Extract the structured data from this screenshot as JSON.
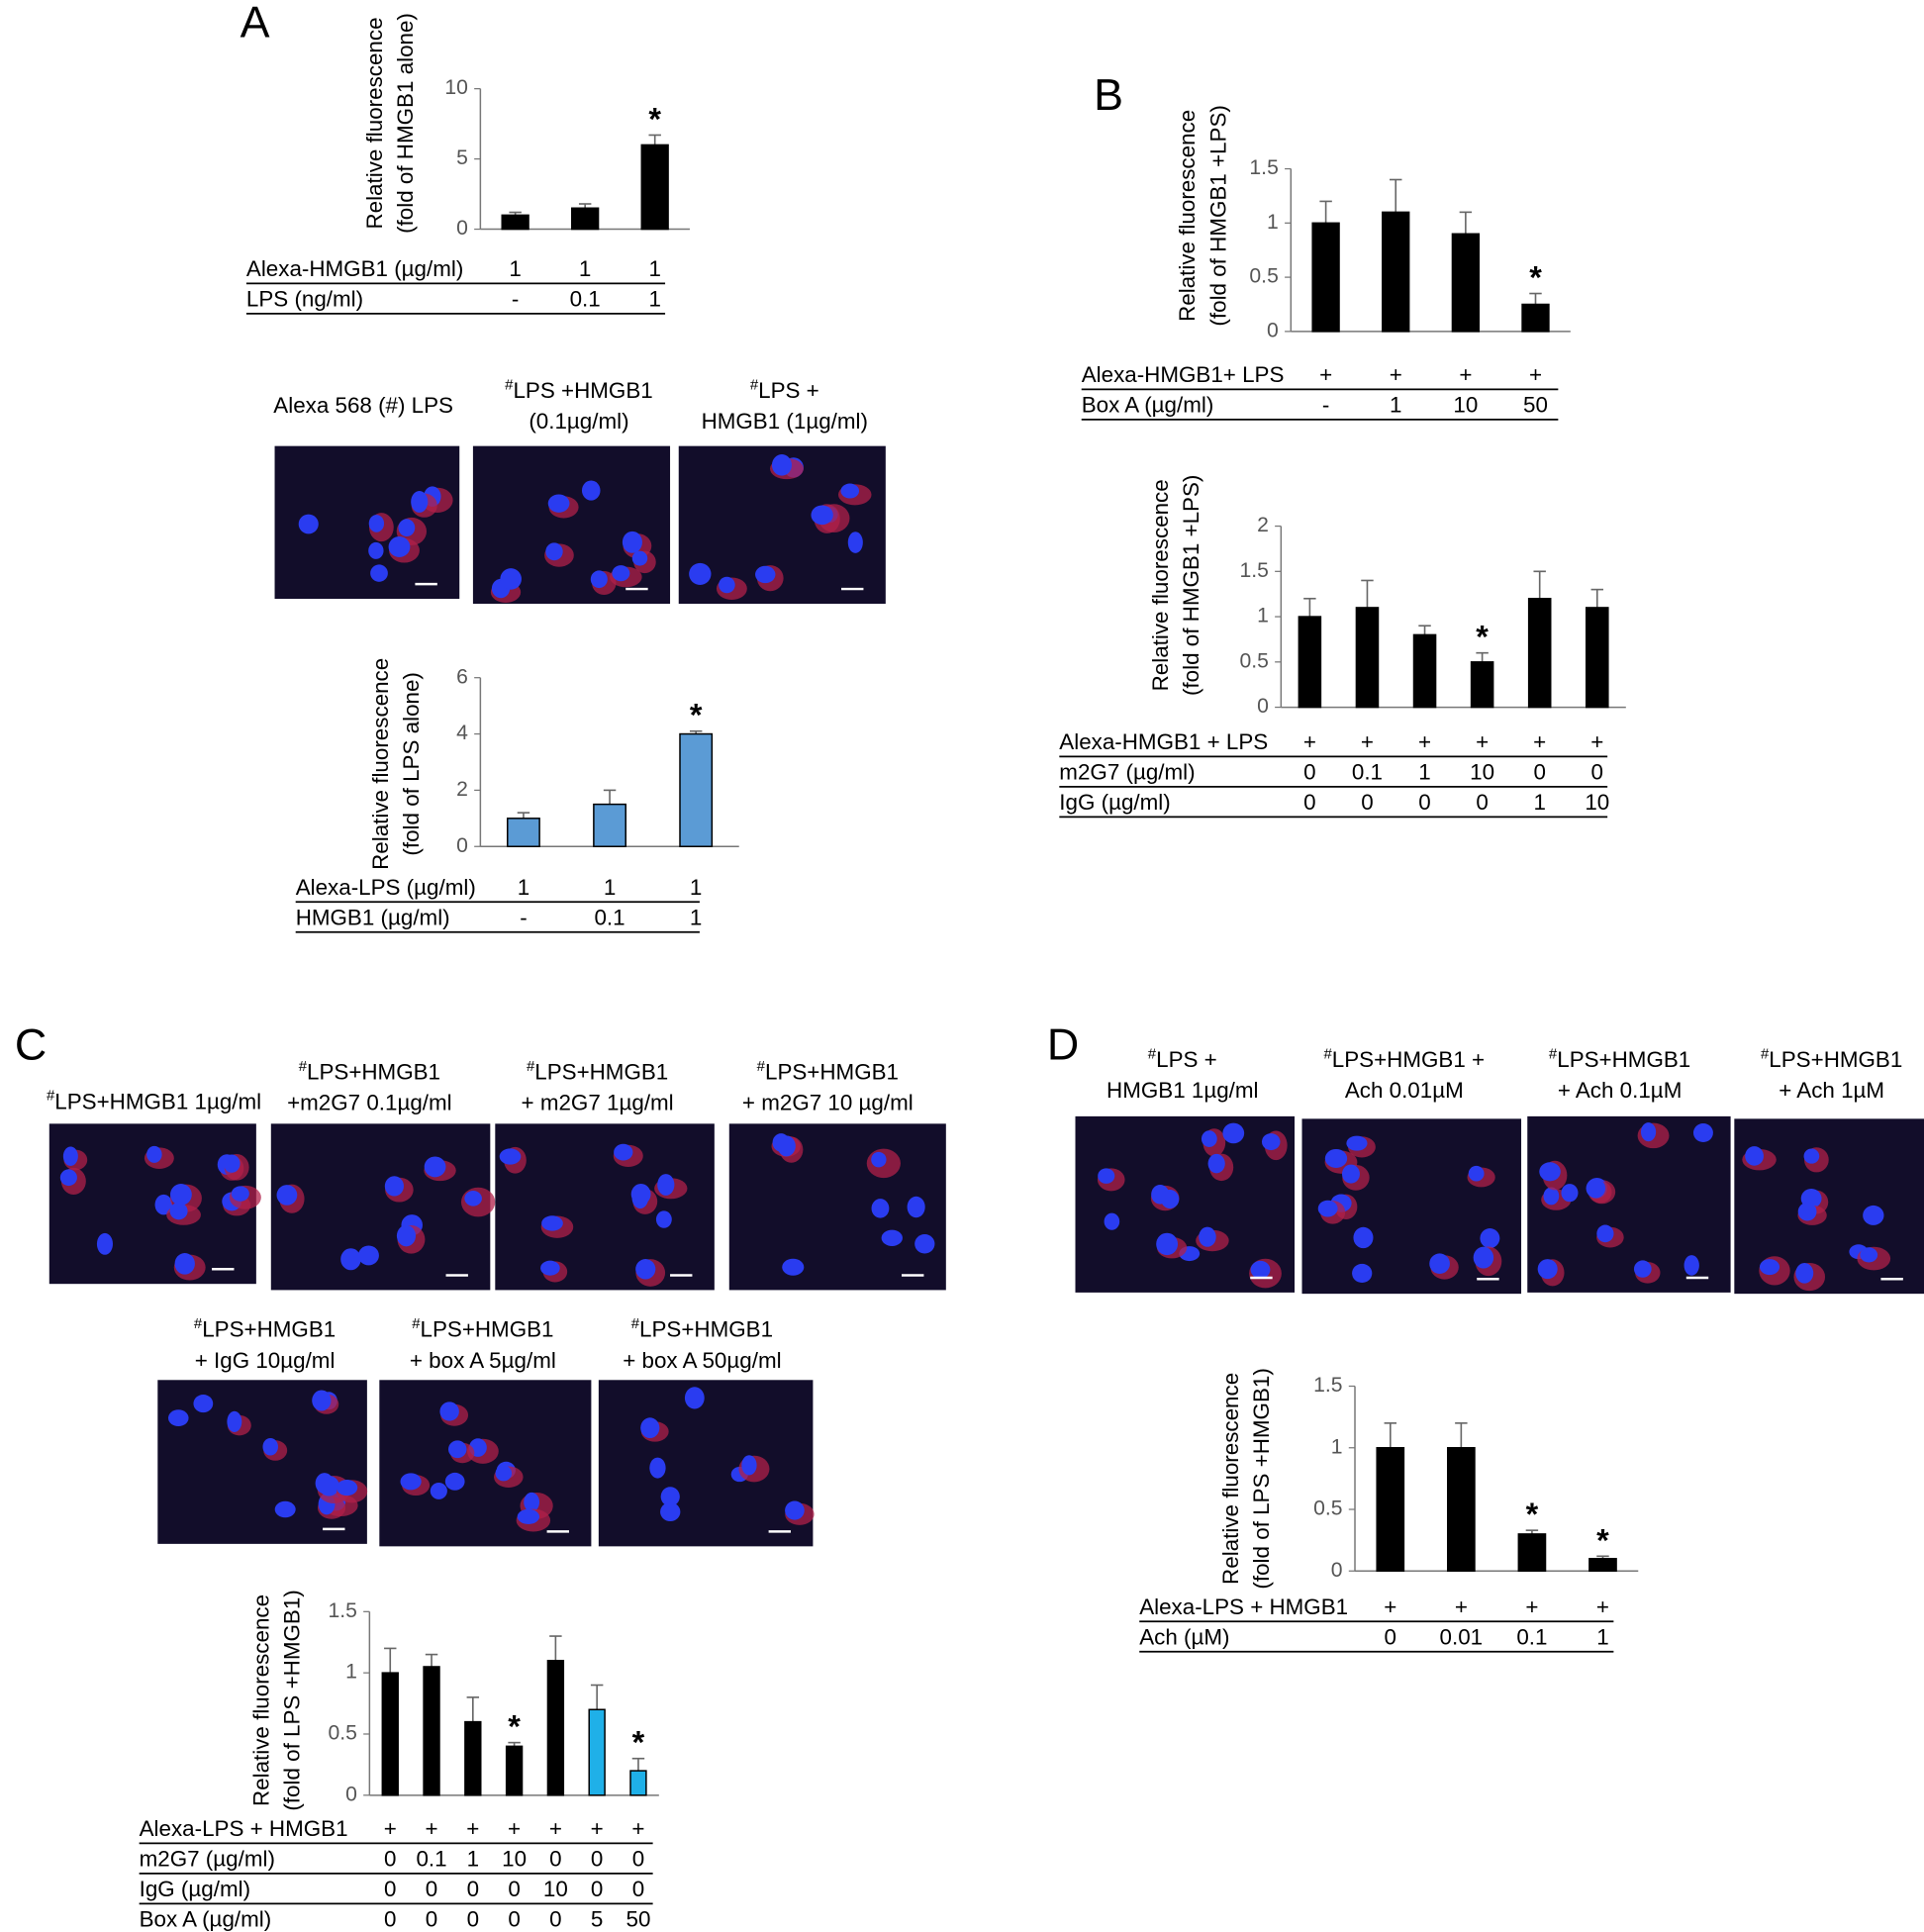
{
  "panels": [
    {
      "label": "A",
      "images": [
        {
          "caption": [
            "Alexa 568 (#) LPS"
          ]
        },
        {
          "caption": [
            "#LPS +HMGB1",
            "(0.1µg/ml)"
          ]
        },
        {
          "caption": [
            "#LPS +",
            "HMGB1 (1µg/ml)"
          ]
        }
      ]
    },
    {
      "label": "B",
      "images": []
    },
    {
      "label": "C",
      "images": [
        {
          "caption": [
            "#LPS+HMGB1 1µg/ml"
          ]
        },
        {
          "caption": [
            "#LPS+HMGB1",
            "+m2G7 0.1µg/ml"
          ]
        },
        {
          "caption": [
            "#LPS+HMGB1",
            "+ m2G7 1µg/ml"
          ]
        },
        {
          "caption": [
            "#LPS+HMGB1",
            "+ m2G7 10 µg/ml"
          ]
        },
        {
          "caption": [
            "#LPS+HMGB1",
            "+ IgG 10µg/ml"
          ]
        },
        {
          "caption": [
            "#LPS+HMGB1",
            "+ box A 5µg/ml"
          ]
        },
        {
          "caption": [
            "#LPS+HMGB1",
            "+ box A 50µg/ml"
          ]
        }
      ]
    },
    {
      "label": "D",
      "images": [
        {
          "caption": [
            "#LPS +",
            "HMGB1 1µg/ml"
          ]
        },
        {
          "caption": [
            "#LPS+HMGB1 +",
            "Ach 0.01µM"
          ]
        },
        {
          "caption": [
            "#LPS+HMGB1",
            "+ Ach 0.1µM"
          ]
        },
        {
          "caption": [
            "#LPS+HMGB1",
            "+ Ach 1µM"
          ]
        }
      ]
    }
  ],
  "chart_data": [
    {
      "type": "bar",
      "y_label": [
        "Relative fluorescence",
        "(fold of HMGB1 alone)"
      ],
      "values": [
        1,
        1.5,
        6
      ],
      "errors": [
        0.2,
        0.3,
        0.7
      ],
      "colors": [
        "#000000",
        "#000000",
        "#000000"
      ],
      "significance": [
        null,
        null,
        "*"
      ],
      "ylim": [
        0,
        10
      ],
      "yticks": [
        0,
        5,
        10
      ],
      "conditions": [
        {
          "label": "Alexa-HMGB1 (µg/ml)",
          "values": [
            "1",
            "1",
            "1"
          ]
        },
        {
          "label": "LPS (ng/ml)",
          "values": [
            "-",
            "0.1",
            "1"
          ]
        }
      ]
    },
    {
      "type": "bar",
      "y_label": [
        "Relative fluorescence",
        "(fold of LPS alone)"
      ],
      "values": [
        1,
        1.5,
        4
      ],
      "errors": [
        0.2,
        0.5,
        0.1
      ],
      "colors": [
        "#5b9bd5",
        "#5b9bd5",
        "#5b9bd5"
      ],
      "significance": [
        null,
        null,
        "*"
      ],
      "ylim": [
        0,
        6
      ],
      "yticks": [
        0,
        2,
        4,
        6
      ],
      "conditions": [
        {
          "label": "Alexa-LPS (µg/ml)",
          "values": [
            "1",
            "1",
            "1"
          ]
        },
        {
          "label": "HMGB1 (µg/ml)",
          "values": [
            "-",
            "0.1",
            "1"
          ]
        }
      ]
    },
    {
      "type": "bar",
      "y_label": [
        "Relative fluorescence",
        "(fold of HMGB1 +LPS)"
      ],
      "values": [
        1,
        1.1,
        0.9,
        0.25
      ],
      "errors": [
        0.2,
        0.3,
        0.2,
        0.1
      ],
      "colors": [
        "#000000",
        "#000000",
        "#000000",
        "#000000"
      ],
      "significance": [
        null,
        null,
        null,
        "*"
      ],
      "ylim": [
        0,
        1.5
      ],
      "yticks": [
        0,
        0.5,
        1,
        1.5
      ],
      "conditions": [
        {
          "label": "Alexa-HMGB1+ LPS",
          "values": [
            "+",
            "+",
            "+",
            "+"
          ]
        },
        {
          "label": "Box A (µg/ml)",
          "values": [
            "-",
            "1",
            "10",
            "50"
          ]
        }
      ]
    },
    {
      "type": "bar",
      "y_label": [
        "Relative fluorescence",
        "(fold of HMGB1 +LPS)"
      ],
      "values": [
        1,
        1.1,
        0.8,
        0.5,
        1.2,
        1.1
      ],
      "errors": [
        0.2,
        0.3,
        0.1,
        0.1,
        0.3,
        0.2
      ],
      "colors": [
        "#000000",
        "#000000",
        "#000000",
        "#000000",
        "#000000",
        "#000000"
      ],
      "significance": [
        null,
        null,
        null,
        "*",
        null,
        null
      ],
      "ylim": [
        0,
        2
      ],
      "yticks": [
        0,
        0.5,
        1,
        1.5,
        2
      ],
      "conditions": [
        {
          "label": "Alexa-HMGB1 + LPS",
          "values": [
            "+",
            "+",
            "+",
            "+",
            "+",
            "+"
          ]
        },
        {
          "label": "m2G7 (µg/ml)",
          "values": [
            "0",
            "0.1",
            "1",
            "10",
            "0",
            "0"
          ]
        },
        {
          "label": "IgG (µg/ml)",
          "values": [
            "0",
            "0",
            "0",
            "0",
            "1",
            "10"
          ]
        }
      ]
    },
    {
      "type": "bar",
      "y_label": [
        "Relative fluorescence",
        "(fold of LPS +HMGB1)"
      ],
      "values": [
        1,
        1.05,
        0.6,
        0.4,
        1.1,
        0.7,
        0.2
      ],
      "errors": [
        0.2,
        0.1,
        0.2,
        0.03,
        0.2,
        0.2,
        0.1
      ],
      "colors": [
        "#000000",
        "#000000",
        "#000000",
        "#000000",
        "#000000",
        "#1fb0e8",
        "#1fb0e8"
      ],
      "significance": [
        null,
        null,
        null,
        "*",
        null,
        null,
        "*"
      ],
      "ylim": [
        0,
        1.5
      ],
      "yticks": [
        0,
        0.5,
        1,
        1.5
      ],
      "conditions": [
        {
          "label": "Alexa-LPS + HMGB1",
          "values": [
            "+",
            "+",
            "+",
            "+",
            "+",
            "+",
            "+"
          ]
        },
        {
          "label": "m2G7 (µg/ml)",
          "values": [
            "0",
            "0.1",
            "1",
            "10",
            "0",
            "0",
            "0"
          ]
        },
        {
          "label": "IgG (µg/ml)",
          "values": [
            "0",
            "0",
            "0",
            "0",
            "10",
            "0",
            "0"
          ]
        },
        {
          "label": "Box A (µg/ml)",
          "values": [
            "0",
            "0",
            "0",
            "0",
            "0",
            "5",
            "50"
          ]
        }
      ]
    },
    {
      "type": "bar",
      "y_label": [
        "Relative fluorescence",
        "(fold of LPS +HMGB1)"
      ],
      "values": [
        1,
        1,
        0.3,
        0.1
      ],
      "errors": [
        0.2,
        0.2,
        0.03,
        0.02
      ],
      "colors": [
        "#000000",
        "#000000",
        "#000000",
        "#000000"
      ],
      "significance": [
        null,
        null,
        "*",
        "*"
      ],
      "ylim": [
        0,
        1.5
      ],
      "yticks": [
        0,
        0.5,
        1,
        1.5
      ],
      "conditions": [
        {
          "label": "Alexa-LPS + HMGB1",
          "values": [
            "+",
            "+",
            "+",
            "+"
          ]
        },
        {
          "label": "Ach (µM)",
          "values": [
            "0",
            "0.01",
            "0.1",
            "1"
          ]
        }
      ]
    }
  ]
}
